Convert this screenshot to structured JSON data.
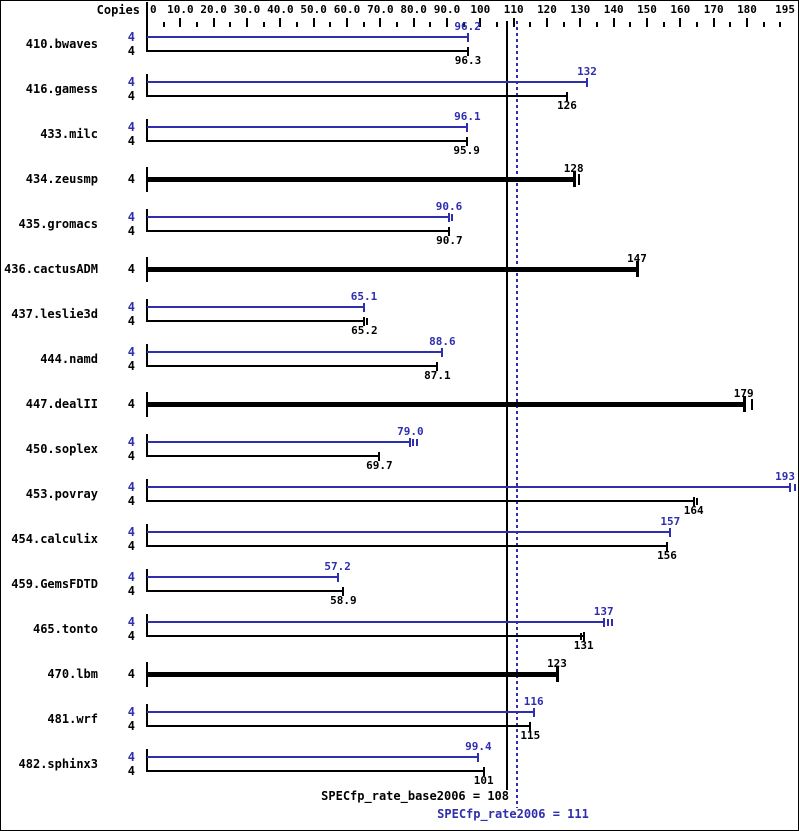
{
  "header": {
    "copies_label": "Copies"
  },
  "colors": {
    "peak_blue": "#2e2eae",
    "base_black": "#000000"
  },
  "axis": {
    "min": 0,
    "max": 195,
    "labels": [
      {
        "v": 0,
        "t": "0",
        "align": "left"
      },
      {
        "v": 10,
        "t": "10.0",
        "align": "center"
      },
      {
        "v": 20,
        "t": "20.0",
        "align": "center"
      },
      {
        "v": 30,
        "t": "30.0",
        "align": "center"
      },
      {
        "v": 40,
        "t": "40.0",
        "align": "center"
      },
      {
        "v": 50,
        "t": "50.0",
        "align": "center"
      },
      {
        "v": 60,
        "t": "60.0",
        "align": "center"
      },
      {
        "v": 70,
        "t": "70.0",
        "align": "center"
      },
      {
        "v": 80,
        "t": "80.0",
        "align": "center"
      },
      {
        "v": 90,
        "t": "90.0",
        "align": "center"
      },
      {
        "v": 100,
        "t": "100",
        "align": "center"
      },
      {
        "v": 110,
        "t": "110",
        "align": "center"
      },
      {
        "v": 120,
        "t": "120",
        "align": "center"
      },
      {
        "v": 130,
        "t": "130",
        "align": "center"
      },
      {
        "v": 140,
        "t": "140",
        "align": "center"
      },
      {
        "v": 150,
        "t": "150",
        "align": "center"
      },
      {
        "v": 160,
        "t": "160",
        "align": "center"
      },
      {
        "v": 170,
        "t": "170",
        "align": "center"
      },
      {
        "v": 180,
        "t": "180",
        "align": "center"
      },
      {
        "v": 195,
        "t": "195",
        "align": "right"
      }
    ],
    "major_ticks": [
      10,
      20,
      30,
      40,
      50,
      60,
      70,
      80,
      90,
      100,
      110,
      120,
      130,
      140,
      150,
      160,
      170,
      180
    ],
    "minor_ticks": [
      5,
      15,
      25,
      35,
      45,
      55,
      65,
      75,
      85,
      95,
      105,
      115,
      125,
      135,
      145,
      155,
      165,
      175,
      185,
      190
    ]
  },
  "chart_data": {
    "type": "bar",
    "orientation": "horizontal",
    "title": "",
    "xlabel": "",
    "ylabel": "",
    "xlim": [
      0,
      195
    ],
    "series_names": [
      "peak (SPECfp_rate2006)",
      "base (SPECfp_rate_base2006)"
    ],
    "benchmarks": [
      {
        "name": "410.bwaves",
        "copies": 4,
        "peak": 96.2,
        "base": 96.3,
        "peak_label": "96.2",
        "base_label": "96.3"
      },
      {
        "name": "416.gamess",
        "copies": 4,
        "peak": 132,
        "base": 126,
        "peak_label": "132",
        "base_label": "126"
      },
      {
        "name": "433.milc",
        "copies": 4,
        "peak": 96.1,
        "base": 95.9,
        "peak_label": "96.1",
        "base_label": "95.9"
      },
      {
        "name": "434.zeusmp",
        "copies": 4,
        "base": 128,
        "base_label": "128",
        "single": true,
        "base_marks": [
          129.7
        ]
      },
      {
        "name": "435.gromacs",
        "copies": 4,
        "peak": 90.6,
        "base": 90.7,
        "peak_label": "90.6",
        "base_label": "90.7",
        "peak_marks": [
          91.6
        ]
      },
      {
        "name": "436.cactusADM",
        "copies": 4,
        "base": 147,
        "base_label": "147",
        "single": true
      },
      {
        "name": "437.leslie3d",
        "copies": 4,
        "peak": 65.1,
        "base": 65.2,
        "peak_label": "65.1",
        "base_label": "65.2",
        "base_marks": [
          66.1
        ]
      },
      {
        "name": "444.namd",
        "copies": 4,
        "peak": 88.6,
        "base": 87.1,
        "peak_label": "88.6",
        "base_label": "87.1"
      },
      {
        "name": "447.dealII",
        "copies": 4,
        "base": 179,
        "base_label": "179",
        "single": true,
        "base_marks": [
          181.6
        ]
      },
      {
        "name": "450.soplex",
        "copies": 4,
        "peak": 79.0,
        "base": 69.7,
        "peak_label": "79.0",
        "base_label": "69.7",
        "peak_marks": [
          79.9,
          80.9
        ]
      },
      {
        "name": "453.povray",
        "copies": 4,
        "peak": 193,
        "base": 164,
        "peak_label": "193",
        "base_label": "164",
        "peak_marks": [
          194.3
        ],
        "base_marks": [
          164.9
        ]
      },
      {
        "name": "454.calculix",
        "copies": 4,
        "peak": 157,
        "base": 156,
        "peak_label": "157",
        "base_label": "156"
      },
      {
        "name": "459.GemsFDTD",
        "copies": 4,
        "peak": 57.2,
        "base": 58.9,
        "peak_label": "57.2",
        "base_label": "58.9"
      },
      {
        "name": "465.tonto",
        "copies": 4,
        "peak": 137,
        "base": 131,
        "peak_label": "137",
        "base_label": "131",
        "peak_marks": [
          138.3,
          139.4
        ],
        "base_marks": [
          130.3
        ]
      },
      {
        "name": "470.lbm",
        "copies": 4,
        "base": 123,
        "base_label": "123",
        "single": true
      },
      {
        "name": "481.wrf",
        "copies": 4,
        "peak": 116,
        "base": 115,
        "peak_label": "116",
        "base_label": "115"
      },
      {
        "name": "482.sphinx3",
        "copies": 4,
        "peak": 99.4,
        "base": 101,
        "peak_label": "99.4",
        "base_label": "101"
      }
    ],
    "means": {
      "base_label": "SPECfp_rate_base2006 = 108",
      "base_value": 108,
      "peak_label": "SPECfp_rate2006 = 111",
      "peak_value": 111
    }
  }
}
